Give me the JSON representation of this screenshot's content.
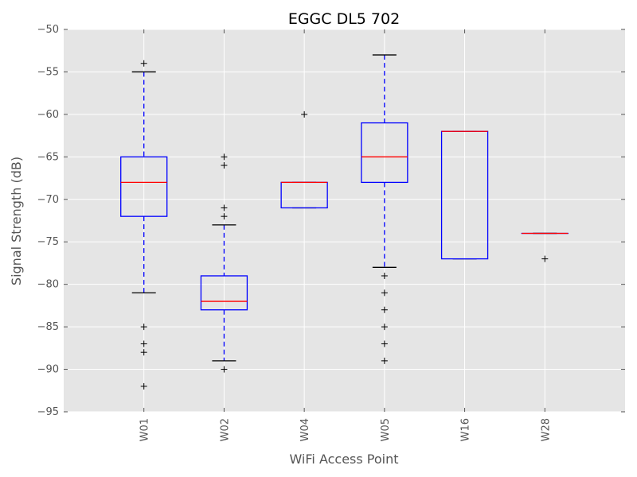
{
  "chart_data": {
    "type": "box",
    "title": "EGGC DL5 702",
    "xlabel": "WiFi Access Point",
    "ylabel": "Signal Strength (dB)",
    "ylim": [
      -95,
      -50
    ],
    "yticks": [
      -95,
      -90,
      -85,
      -80,
      -75,
      -70,
      -65,
      -60,
      -55,
      -50
    ],
    "ytick_labels": [
      "−95",
      "−90",
      "−85",
      "−80",
      "−75",
      "−70",
      "−65",
      "−60",
      "−55",
      "−50"
    ],
    "grid": true,
    "categories": [
      "W01",
      "W02",
      "W04",
      "W05",
      "W16",
      "W28"
    ],
    "boxes": [
      {
        "label": "W01",
        "whisker_low": -81,
        "q1": -72,
        "median": -68,
        "q3": -65,
        "whisker_high": -55,
        "fliers": [
          -54,
          -85,
          -87,
          -88,
          -92
        ]
      },
      {
        "label": "W02",
        "whisker_low": -89,
        "q1": -83,
        "median": -82,
        "q3": -79,
        "whisker_high": -73,
        "fliers": [
          -65,
          -66,
          -71,
          -72,
          -90
        ]
      },
      {
        "label": "W04",
        "whisker_low": -71,
        "q1": -71,
        "median": -68,
        "q3": -68,
        "whisker_high": -68,
        "fliers": [
          -60
        ]
      },
      {
        "label": "W05",
        "whisker_low": -78,
        "q1": -68,
        "median": -65,
        "q3": -61,
        "whisker_high": -53,
        "fliers": [
          -79,
          -81,
          -83,
          -85,
          -87,
          -89
        ]
      },
      {
        "label": "W16",
        "whisker_low": -77,
        "q1": -77,
        "median": -62,
        "q3": -62,
        "whisker_high": -62,
        "fliers": []
      },
      {
        "label": "W28",
        "whisker_low": -74,
        "q1": -74,
        "median": -74,
        "q3": -74,
        "whisker_high": -74,
        "fliers": [
          -77
        ]
      }
    ],
    "colors": {
      "background": "#e5e5e5",
      "grid": "#ffffff",
      "box": "#0000ff",
      "median": "#ff0000",
      "whisker": "#0000ff",
      "cap": "#000000",
      "flier": "#000000"
    }
  }
}
